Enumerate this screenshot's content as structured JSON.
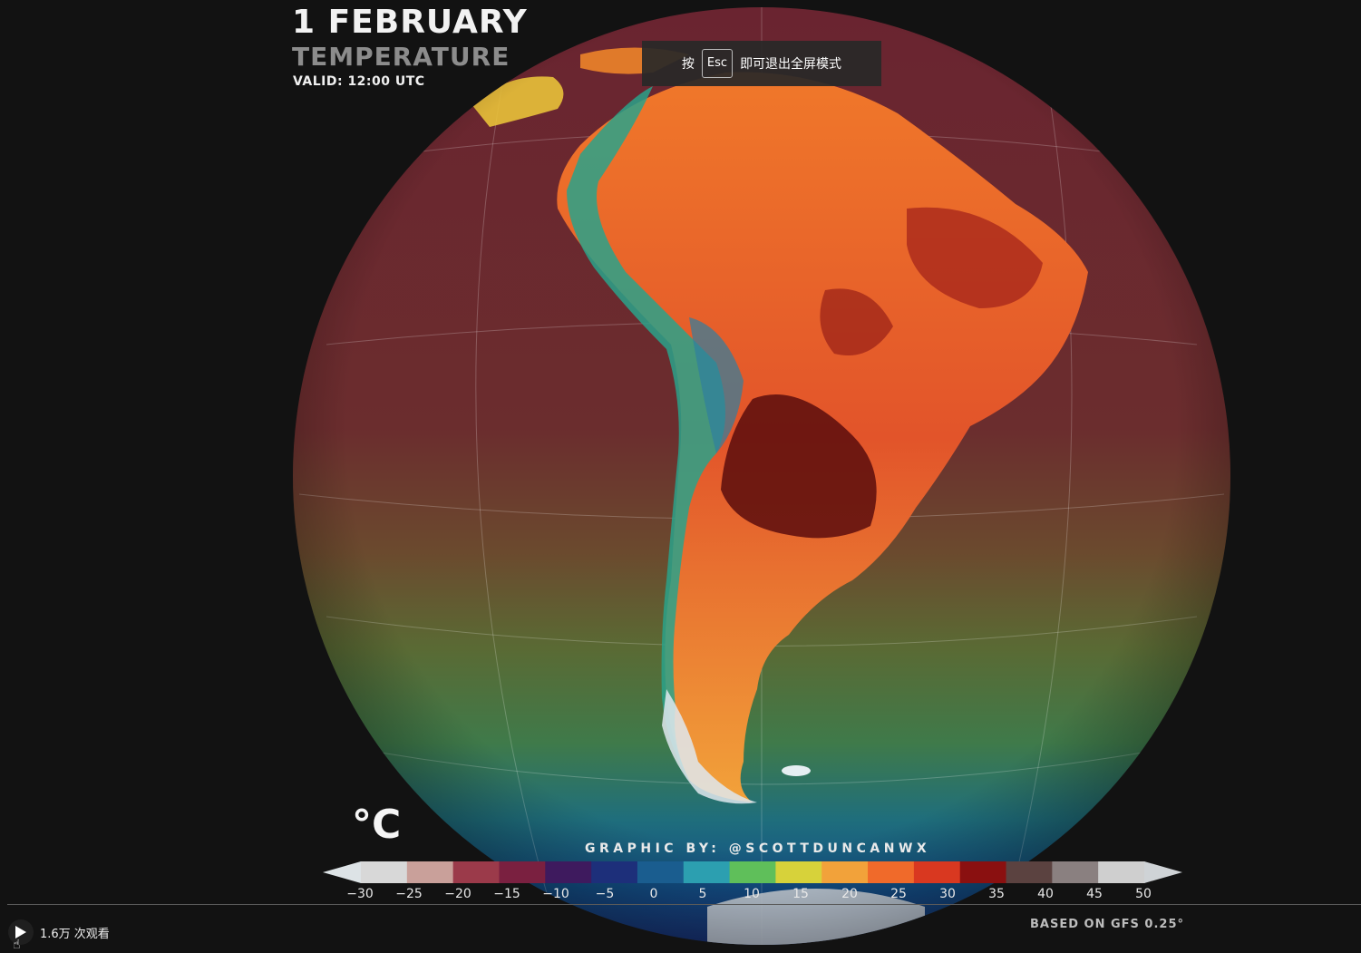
{
  "header": {
    "date": "1 FEBRUARY",
    "variable": "TEMPERATURE",
    "valid": "VALID: 12:00 UTC"
  },
  "fullscreen_hint": {
    "prefix": "按",
    "key": "Esc",
    "suffix": "即可退出全屏模式"
  },
  "legend": {
    "unit": "°C",
    "credit": "GRAPHIC BY: @SCOTTDUNCANWX",
    "ticks": [
      "−30",
      "−25",
      "−20",
      "−15",
      "−10",
      "−5",
      "0",
      "5",
      "10",
      "15",
      "20",
      "25",
      "30",
      "35",
      "40",
      "45",
      "50"
    ],
    "colors": [
      "#d8d8d8",
      "#c9a09a",
      "#9b3a4a",
      "#7a2040",
      "#3e1a5e",
      "#1d2f7a",
      "#1a5d8f",
      "#2c9fb0",
      "#5fbf5a",
      "#d7d23a",
      "#f2a23a",
      "#f06a2a",
      "#d93820",
      "#8a1010",
      "#5b4240",
      "#8a8080",
      "#cfcfcf"
    ]
  },
  "player": {
    "views": "1.6万 次观看",
    "source": "BASED ON GFS 0.25°"
  },
  "icons": {
    "play": "play-icon",
    "cursor": "hand-cursor-icon"
  }
}
